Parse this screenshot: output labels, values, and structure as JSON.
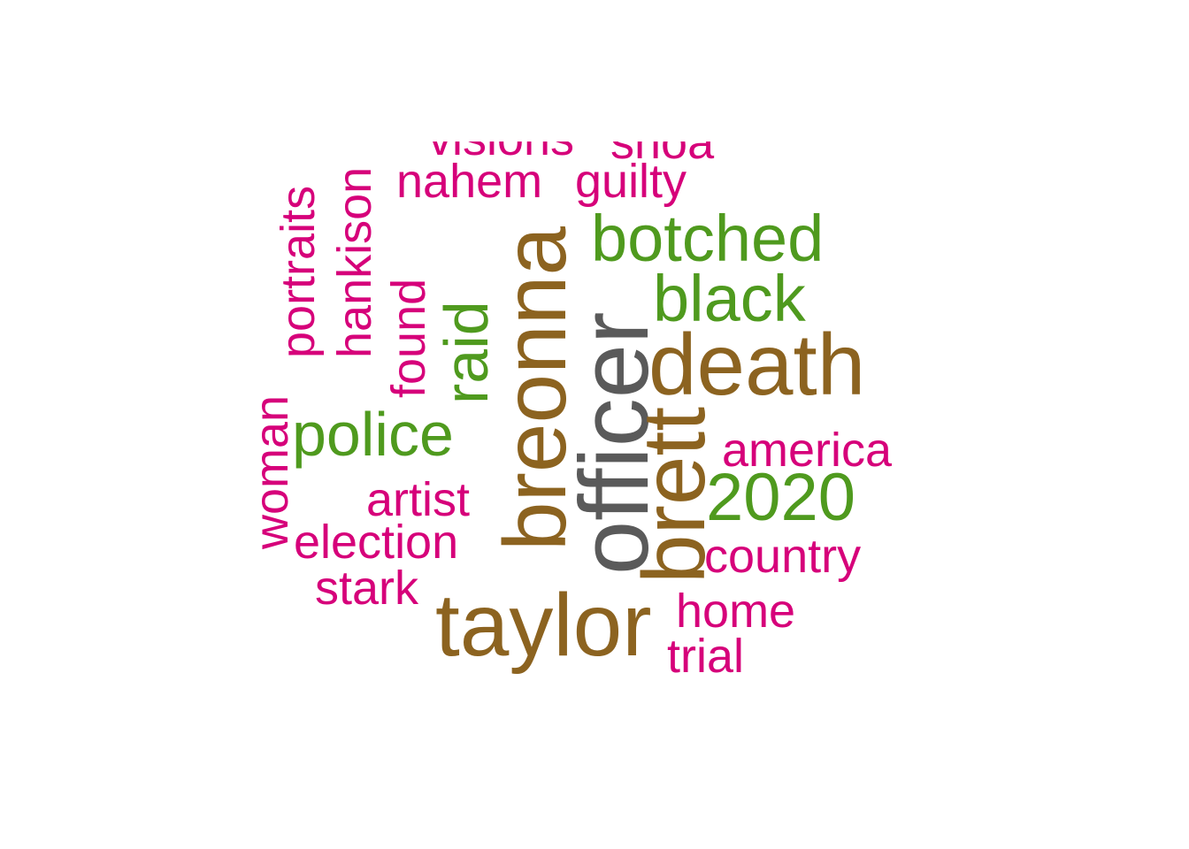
{
  "colors": {
    "tier1": "#5a5a5a",
    "tier2": "#8c6320",
    "tier3": "#4f9a1e",
    "tier4": "#d6007a"
  },
  "words": [
    {
      "id": "officer",
      "text": "officer",
      "tier": "tier1"
    },
    {
      "id": "taylor",
      "text": "taylor",
      "tier": "tier2"
    },
    {
      "id": "breonna",
      "text": "breonna",
      "tier": "tier2"
    },
    {
      "id": "death",
      "text": "death",
      "tier": "tier2"
    },
    {
      "id": "brett",
      "text": "brett",
      "tier": "tier2"
    },
    {
      "id": "botched",
      "text": "botched",
      "tier": "tier3"
    },
    {
      "id": "black",
      "text": "black",
      "tier": "tier3"
    },
    {
      "id": "police",
      "text": "police",
      "tier": "tier3"
    },
    {
      "id": "raid",
      "text": "raid",
      "tier": "tier3"
    },
    {
      "id": "2020",
      "text": "2020",
      "tier": "tier3"
    },
    {
      "id": "america",
      "text": "america",
      "tier": "tier4"
    },
    {
      "id": "country",
      "text": "country",
      "tier": "tier4"
    },
    {
      "id": "home",
      "text": "home",
      "tier": "tier4"
    },
    {
      "id": "trial",
      "text": "trial",
      "tier": "tier4"
    },
    {
      "id": "stark",
      "text": "stark",
      "tier": "tier4"
    },
    {
      "id": "election",
      "text": "election",
      "tier": "tier4"
    },
    {
      "id": "artist",
      "text": "artist",
      "tier": "tier4"
    },
    {
      "id": "woman",
      "text": "woman",
      "tier": "tier4"
    },
    {
      "id": "found",
      "text": "found",
      "tier": "tier4"
    },
    {
      "id": "portraits",
      "text": "portraits",
      "tier": "tier4"
    },
    {
      "id": "hankison",
      "text": "hankison",
      "tier": "tier4"
    },
    {
      "id": "nahem",
      "text": "nahem",
      "tier": "tier4"
    },
    {
      "id": "guilty",
      "text": "guilty",
      "tier": "tier4"
    },
    {
      "id": "visions",
      "text": "visions",
      "tier": "tier4"
    },
    {
      "id": "shoa",
      "text": "shoa",
      "tier": "tier4"
    }
  ]
}
